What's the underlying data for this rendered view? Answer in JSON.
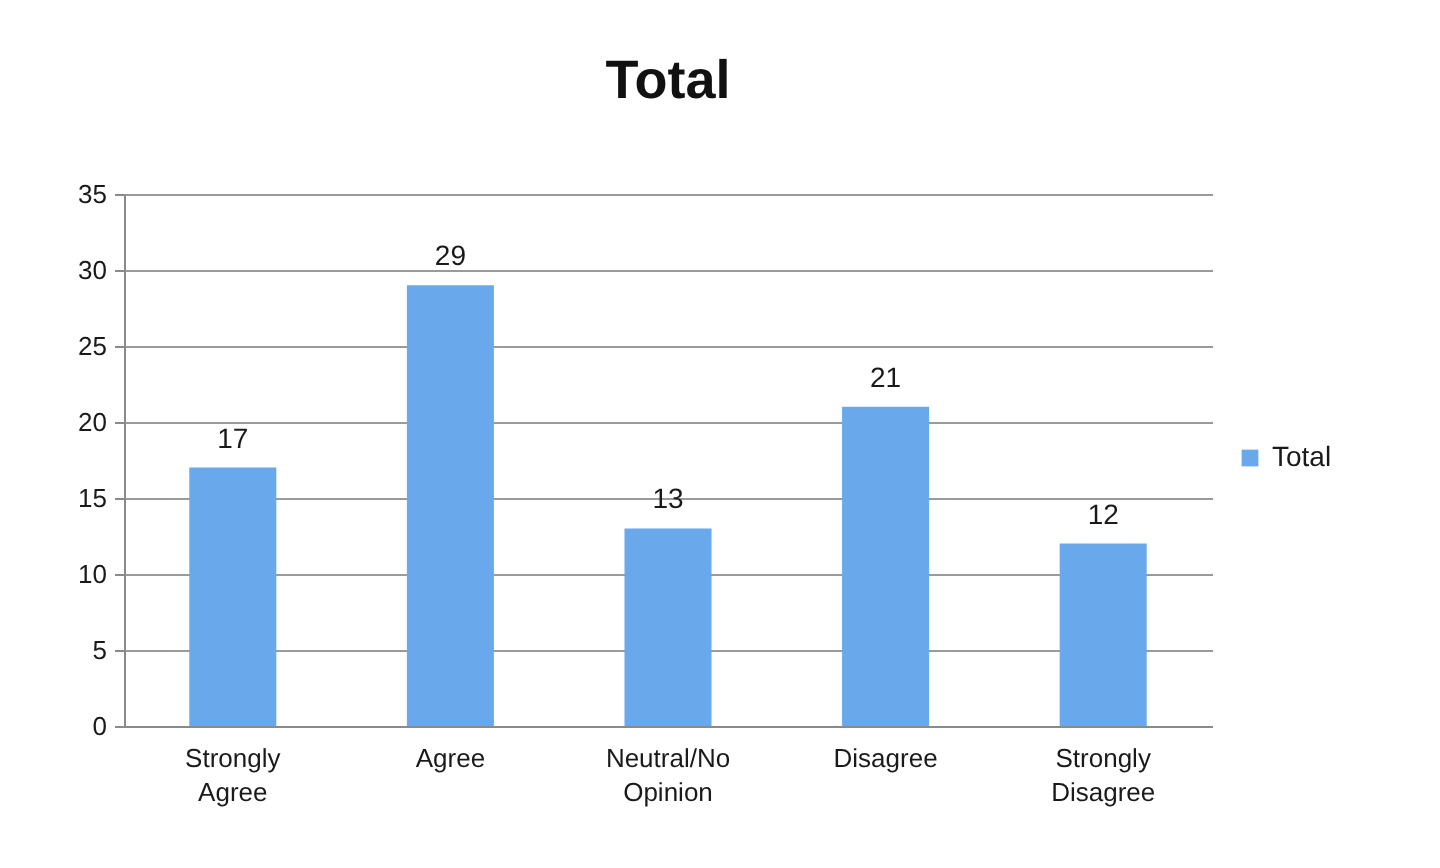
{
  "chart_data": {
    "type": "bar",
    "title": "Total",
    "categories": [
      "Strongly Agree",
      "Agree",
      "Neutral/No Opinion",
      "Disagree",
      "Strongly Disagree"
    ],
    "series": [
      {
        "name": "Total",
        "color": "#6aa8ec",
        "values": [
          17,
          29,
          13,
          21,
          12
        ]
      }
    ],
    "ylim": [
      0,
      35
    ],
    "yticks": [
      0,
      5,
      10,
      15,
      20,
      25,
      30,
      35
    ],
    "grid": "y",
    "legend": "right",
    "data_labels": true
  }
}
